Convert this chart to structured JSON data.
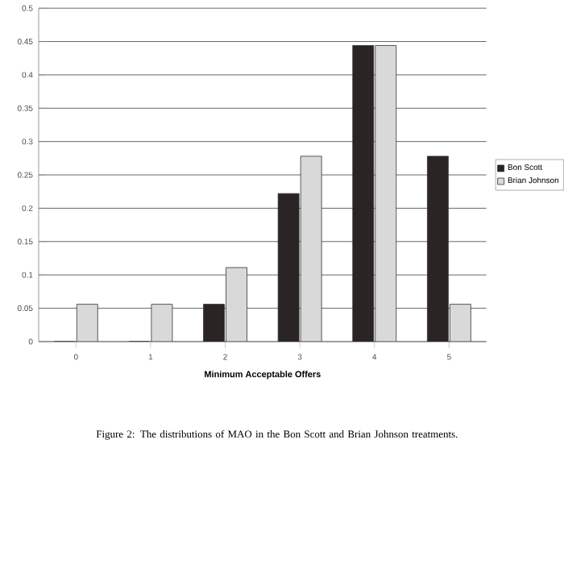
{
  "chart_data": {
    "type": "bar",
    "xlabel": "Minimum Acceptable Offers",
    "categories": [
      "0",
      "1",
      "2",
      "3",
      "4",
      "5"
    ],
    "series": [
      {
        "name": "Bon Scott",
        "color": "#2b2424",
        "values": [
          0,
          0,
          0.056,
          0.222,
          0.444,
          0.278
        ]
      },
      {
        "name": "Brian Johnson",
        "color": "#d9d9d9",
        "values": [
          0.056,
          0.056,
          0.111,
          0.278,
          0.444,
          0.056
        ]
      }
    ],
    "ylim": [
      0,
      0.5
    ],
    "yticks": [
      0,
      0.05,
      0.1,
      0.15,
      0.2,
      0.25,
      0.3,
      0.35,
      0.4,
      0.45,
      0.5
    ],
    "grid": "y",
    "legend": "right",
    "annotations": [
      "Figure 2: The distributions of MAO in the Bon Scott and Brian Johnson treatments."
    ]
  }
}
